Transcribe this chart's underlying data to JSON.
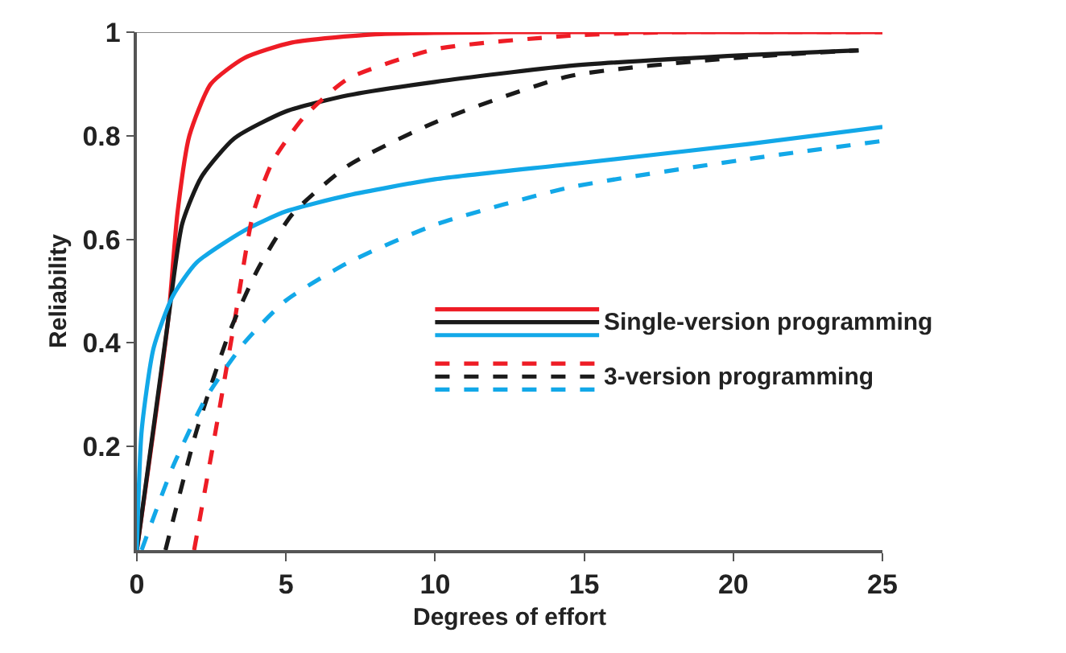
{
  "chart_data": {
    "type": "line",
    "xlabel": "Degrees of effort",
    "ylabel": "Reliability",
    "xlim": [
      0,
      25
    ],
    "xticks": [
      0,
      5,
      10,
      15,
      20,
      25
    ],
    "ylim": [
      0,
      1
    ],
    "yticks": [
      0.2,
      0.4,
      0.6,
      0.8,
      1
    ],
    "annotations": [
      "Single-version programming",
      "3-version programming"
    ],
    "grid": false,
    "marker": "none",
    "ref_lines": [
      {
        "axis": "y",
        "value": 1,
        "color": "#888888"
      }
    ],
    "series": [
      {
        "color": "#ee1c25",
        "line_style": "solid",
        "x": [
          0,
          1.04,
          1.36,
          1.76,
          2.48,
          3.6,
          5.2,
          8,
          12,
          25
        ],
        "values": [
          0,
          0.44,
          0.65,
          0.8,
          0.9,
          0.95,
          0.98,
          0.996,
          1,
          1
        ]
      },
      {
        "color": "#1a1a1a",
        "line_style": "solid",
        "x": [
          0,
          1.04,
          1.52,
          2.16,
          3.27,
          5,
          7.08,
          10,
          14.5,
          20.5,
          24.2
        ],
        "values": [
          0,
          0.44,
          0.63,
          0.72,
          0.795,
          0.847,
          0.878,
          0.904,
          0.935,
          0.956,
          0.965
        ]
      },
      {
        "color": "#12a8e8",
        "line_style": "solid",
        "x": [
          0,
          0.16,
          0.56,
          1.2,
          2,
          3.6,
          5,
          7.08,
          10,
          14.5,
          20.5,
          25
        ],
        "values": [
          0,
          0.23,
          0.39,
          0.49,
          0.555,
          0.617,
          0.654,
          0.685,
          0.716,
          0.745,
          0.784,
          0.817
        ]
      },
      {
        "color": "#ee1c25",
        "line_style": "dashed",
        "x": [
          1.92,
          2.64,
          3.27,
          3.9,
          4.55,
          5.6,
          7.08,
          10,
          14.5,
          18,
          25
        ],
        "values": [
          0,
          0.23,
          0.44,
          0.65,
          0.75,
          0.836,
          0.91,
          0.967,
          0.993,
          1,
          1
        ]
      },
      {
        "color": "#1a1a1a",
        "line_style": "dashed",
        "x": [
          0.96,
          2,
          3.1,
          4.07,
          5.22,
          7.08,
          10,
          14.5,
          20,
          24.2
        ],
        "values": [
          0,
          0.23,
          0.42,
          0.544,
          0.649,
          0.742,
          0.826,
          0.915,
          0.95,
          0.965
        ]
      },
      {
        "color": "#12a8e8",
        "line_style": "dashed",
        "x": [
          0.16,
          1.2,
          2.32,
          3.6,
          5,
          7.08,
          10,
          14.5,
          20.5,
          25
        ],
        "values": [
          0,
          0.16,
          0.294,
          0.4,
          0.482,
          0.555,
          0.628,
          0.7,
          0.755,
          0.79
        ]
      }
    ]
  }
}
